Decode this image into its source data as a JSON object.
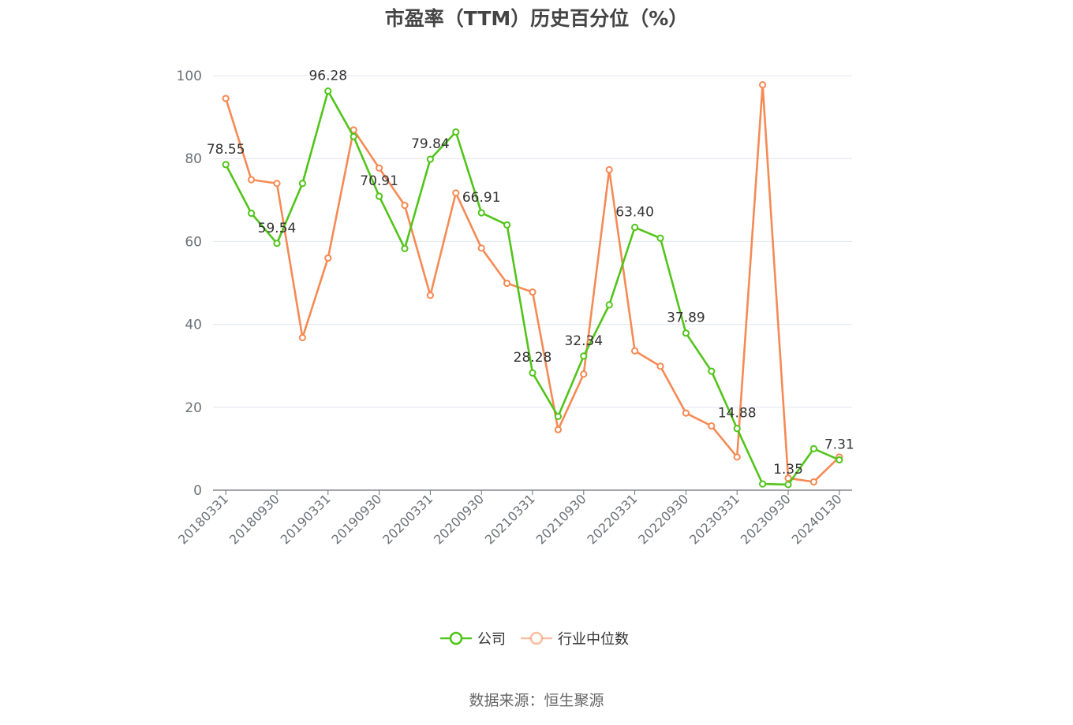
{
  "chart_data": {
    "type": "line",
    "title": "市盈率（TTM）历史百分位（%）",
    "ylim": [
      0,
      100
    ],
    "yticks": [
      0,
      20,
      40,
      60,
      80,
      100
    ],
    "x": [
      "20180331",
      "20180630",
      "20180930",
      "20181231",
      "20190331",
      "20190630",
      "20190930",
      "20191231",
      "20200331",
      "20200630",
      "20200930",
      "20201231",
      "20210331",
      "20210630",
      "20210930",
      "20211231",
      "20220331",
      "20220630",
      "20220930",
      "20221231",
      "20230331",
      "20230630",
      "20230930",
      "20231231",
      "20240130"
    ],
    "xtick_labels": [
      "20180331",
      "20180930",
      "20190331",
      "20190930",
      "20200331",
      "20200930",
      "20210331",
      "20210930",
      "20220331",
      "20220930",
      "20230331",
      "20230930",
      "20240130"
    ],
    "series": [
      {
        "name": "公司",
        "color": "#52c41a",
        "values": [
          78.55,
          66.8,
          59.54,
          74.0,
          96.28,
          85.3,
          70.91,
          58.3,
          79.84,
          86.4,
          66.91,
          64.0,
          28.28,
          17.8,
          32.34,
          44.7,
          63.4,
          60.8,
          37.89,
          28.7,
          14.88,
          1.5,
          1.35,
          10.0,
          7.31
        ],
        "labels": {
          "0": "78.55",
          "2": "59.54",
          "4": "96.28",
          "6": "70.91",
          "8": "79.84",
          "10": "66.91",
          "12": "28.28",
          "14": "32.34",
          "16": "63.40",
          "18": "37.89",
          "20": "14.88",
          "22": "1.35",
          "24": "7.31"
        }
      },
      {
        "name": "行业中位数",
        "color": "#f58a55",
        "values": [
          94.5,
          74.9,
          74.0,
          36.8,
          56.0,
          86.9,
          77.7,
          68.7,
          47.0,
          71.7,
          58.4,
          49.9,
          47.8,
          14.6,
          28.0,
          77.3,
          33.6,
          29.9,
          18.6,
          15.5,
          8.0,
          97.8,
          2.9,
          2.0,
          8.0
        ]
      }
    ],
    "grid": true,
    "legend_position": "bottom-center"
  },
  "source": "数据来源：恒生聚源"
}
